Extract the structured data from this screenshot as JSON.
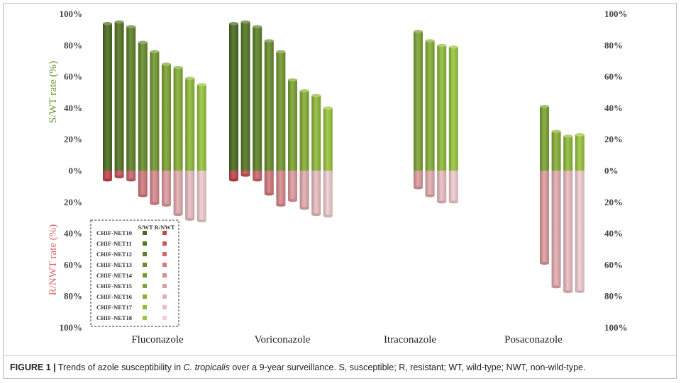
{
  "chart_data": {
    "type": "bar",
    "title": "",
    "categories": [
      "Fluconazole",
      "Voriconazole",
      "Itraconazole",
      "Posaconazole"
    ],
    "y_upper_label": "S/WT rate (%)",
    "y_lower_label": "R/NWT rate (%)",
    "y_ticks": [
      "100%",
      "80%",
      "60%",
      "40%",
      "20%",
      "0%",
      "20%",
      "40%",
      "60%",
      "80%",
      "100%"
    ],
    "ylim": [
      -100,
      100
    ],
    "legend": {
      "header_sw": "S/WT",
      "header_rnwt": "R/NWT",
      "labels": [
        "CHIF-NET10",
        "CHIF-NET11",
        "CHIF-NET12",
        "CHIF-NET13",
        "CHIF-NET14",
        "CHIF-NET15",
        "CHIF-NET16",
        "CHIF-NET17",
        "CHIF-NET18"
      ]
    },
    "series_s_wt": [
      {
        "category": "Fluconazole",
        "values": [
          94,
          95,
          92,
          82,
          76,
          68,
          66,
          59,
          55
        ]
      },
      {
        "category": "Voriconazole",
        "values": [
          94,
          95,
          92,
          83,
          76,
          58,
          51,
          48,
          40
        ]
      },
      {
        "category": "Itraconazole",
        "values": [
          null,
          null,
          null,
          null,
          null,
          89,
          83,
          80,
          79
        ]
      },
      {
        "category": "Posaconazole",
        "values": [
          null,
          null,
          null,
          null,
          null,
          41,
          25,
          22,
          23
        ]
      }
    ],
    "series_r_nwt": [
      {
        "category": "Fluconazole",
        "values": [
          6,
          4,
          6,
          16,
          21,
          22,
          28,
          31,
          32
        ]
      },
      {
        "category": "Voriconazole",
        "values": [
          6,
          3,
          6,
          15,
          22,
          19,
          24,
          28,
          29
        ]
      },
      {
        "category": "Itraconazole",
        "values": [
          null,
          null,
          null,
          null,
          null,
          11,
          16,
          20,
          20
        ]
      },
      {
        "category": "Posaconazole",
        "values": [
          null,
          null,
          null,
          null,
          null,
          59,
          74,
          77,
          77
        ]
      }
    ]
  },
  "colors": {
    "s_wt_dark": "#4a6b1f",
    "s_wt_light": "#9ac63e",
    "r_nwt_dark": "#c1474a",
    "r_nwt_light": "#f1cfd2",
    "upper_label": "#6a9a2e",
    "lower_label": "#e06a6c"
  },
  "caption": {
    "figure": "FIGURE 1 |",
    "text_1": "Trends of azole susceptibility in",
    "species": "C. tropicalis",
    "text_2": "over a 9-year surveillance. S, susceptible; R, resistant; WT, wild-type; NWT, non-wild-type."
  }
}
